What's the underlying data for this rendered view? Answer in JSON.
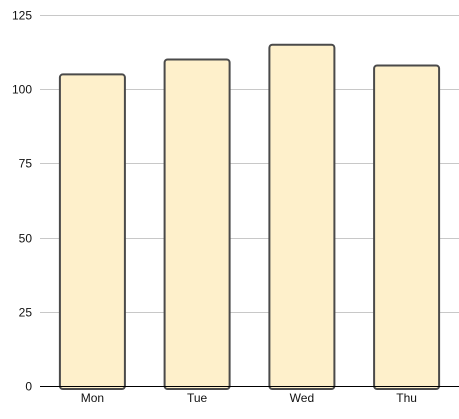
{
  "chart_data": {
    "type": "bar",
    "categories": [
      "Mon",
      "Tue",
      "Wed",
      "Thu"
    ],
    "values": [
      105,
      110,
      115,
      108
    ],
    "title": "",
    "xlabel": "",
    "ylabel": "",
    "ylim": [
      0,
      125
    ],
    "yticks": [
      0,
      25,
      50,
      75,
      100,
      125
    ],
    "grid": true,
    "legend": "none",
    "colors": {
      "bar_fill": "#fef0cb",
      "bar_stroke": "#4a4a4a",
      "grid": "#c8c8c8",
      "axis": "#000000",
      "text": "#111111"
    }
  }
}
